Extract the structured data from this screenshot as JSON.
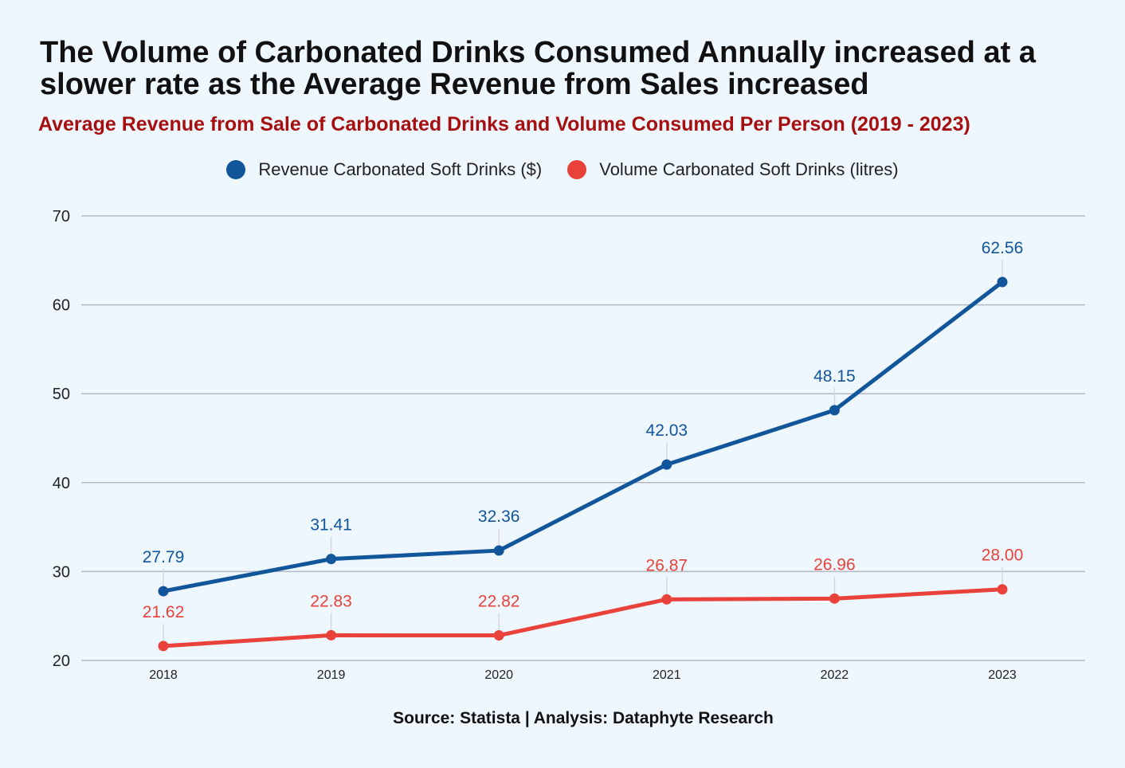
{
  "title": "The Volume of Carbonated Drinks Consumed Annually increased at a slower rate as the Average Revenue from Sales increased",
  "subtitle": "Average Revenue from Sale of Carbonated Drinks and Volume Consumed Per Person (2019 - 2023)",
  "source": "Source: Statista | Analysis: Dataphyte Research",
  "chart_data": {
    "type": "line",
    "categories": [
      "2018",
      "2019",
      "2020",
      "2021",
      "2022",
      "2023"
    ],
    "ylim": [
      20,
      70
    ],
    "yticks": [
      20,
      30,
      40,
      50,
      60,
      70
    ],
    "grid": true,
    "legend_position": "top-center",
    "series": [
      {
        "name": "Revenue Carbonated Soft Drinks ($)",
        "color": "#11559b",
        "values": [
          27.79,
          31.41,
          32.36,
          42.03,
          48.15,
          62.56
        ],
        "labels": [
          "27.79",
          "31.41",
          "32.36",
          "42.03",
          "48.15",
          "62.56"
        ]
      },
      {
        "name": "Volume Carbonated Soft Drinks (litres)",
        "color": "#e8423a",
        "values": [
          21.62,
          22.83,
          22.82,
          26.87,
          26.96,
          28.0
        ],
        "labels": [
          "21.62",
          "22.83",
          "22.82",
          "26.87",
          "26.96",
          "28.00"
        ]
      }
    ]
  }
}
